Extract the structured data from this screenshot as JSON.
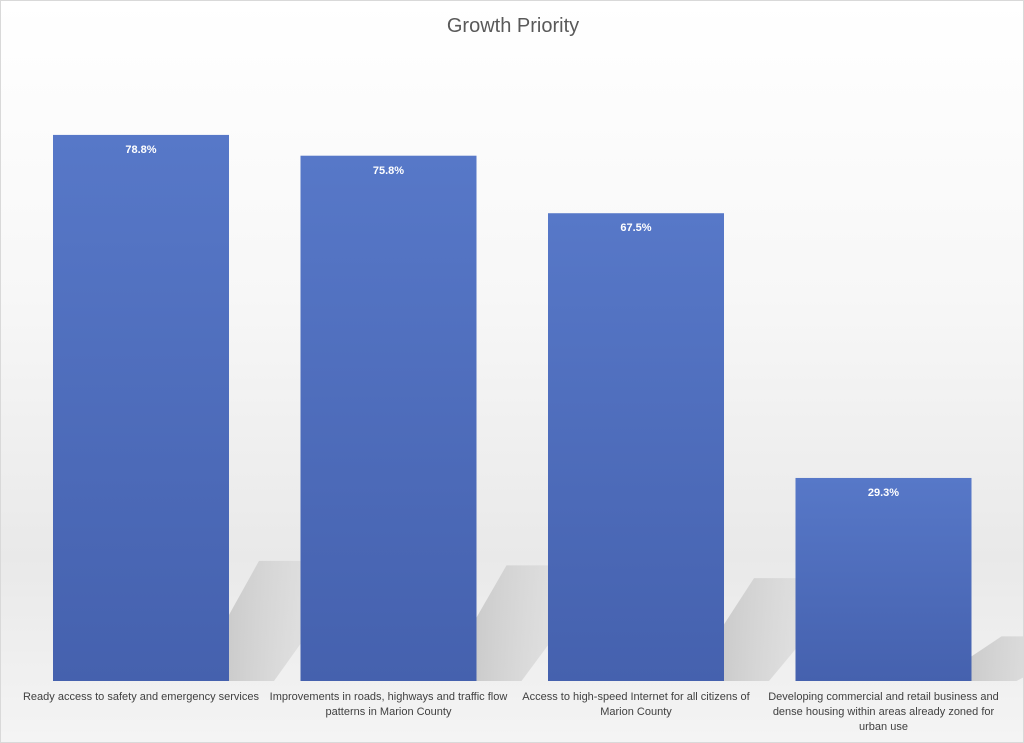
{
  "chart_data": {
    "type": "bar",
    "title": "Growth Priority",
    "categories": [
      "Ready access to safety and emergency services",
      "Improvements in roads, highways and traffic flow patterns in Marion County",
      "Access to high-speed Internet for all citizens of Marion County",
      "Developing commercial and retail business and dense housing within areas already zoned for urban use"
    ],
    "values": [
      78.8,
      75.8,
      67.5,
      29.3
    ],
    "value_labels": [
      "78.8%",
      "75.8%",
      "67.5%",
      "29.3%"
    ],
    "ylim": [
      0,
      100
    ],
    "grid": false,
    "legend": "none",
    "bar_color_top": "#5778c8",
    "bar_color_bottom": "#4561ae"
  }
}
